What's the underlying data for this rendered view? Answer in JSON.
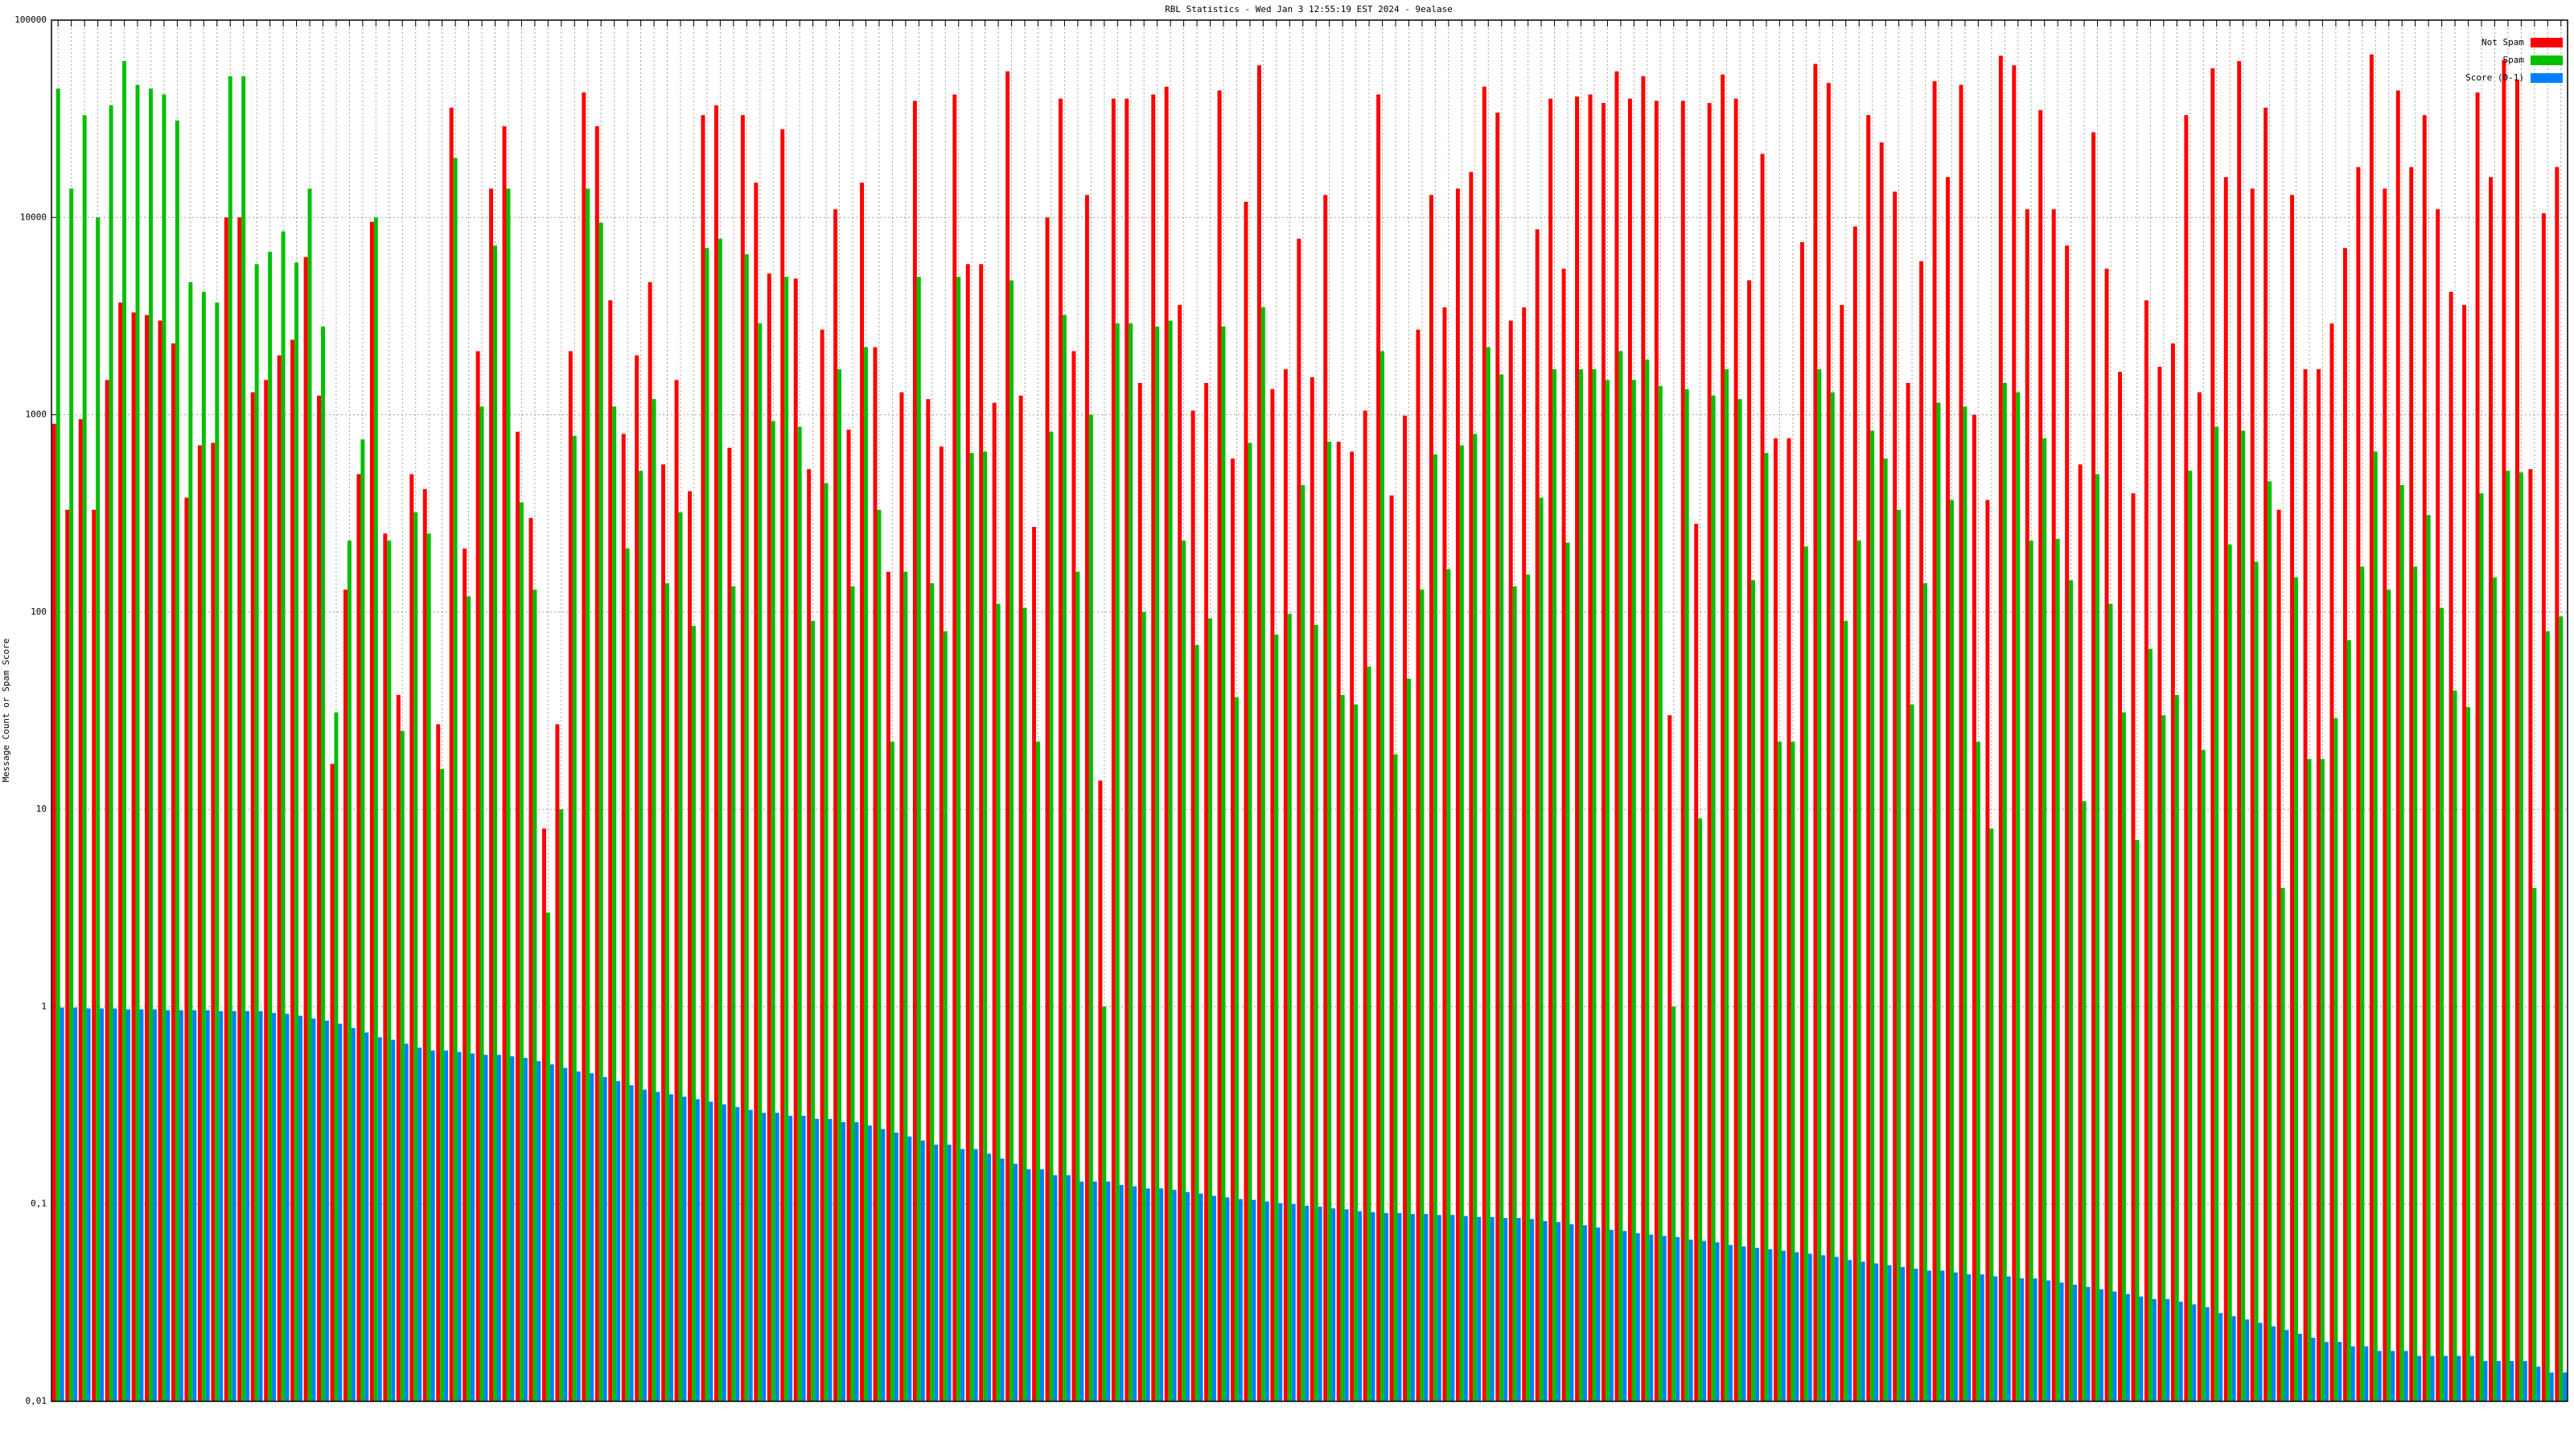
{
  "chart_data": {
    "type": "bar",
    "title": "RBL Statistics - Wed Jan  3 12:55:19 EST 2024 - 9ealase",
    "y_label": "Message Count or Spam Score",
    "log_scale": true,
    "grid": true,
    "legend": "top-right",
    "ylim": [
      0.01,
      100000
    ],
    "yticks": [
      {
        "value": 0.01,
        "label": "0,01"
      },
      {
        "value": 0.1,
        "label": "0,1"
      },
      1,
      10,
      100,
      1000,
      10000,
      100000
    ],
    "categories": [
      null,
      null,
      null,
      null,
      null,
      null,
      null,
      null,
      null,
      null,
      null,
      null,
      null,
      null,
      null,
      null,
      null,
      null,
      null,
      null,
      null,
      null,
      null,
      null,
      null,
      null,
      null,
      null,
      null,
      null,
      null,
      null,
      null,
      null,
      null,
      null,
      null,
      null,
      null,
      null,
      null,
      null,
      null,
      null,
      null,
      null,
      null,
      null,
      null,
      null,
      null,
      null,
      null,
      null,
      null,
      null,
      null,
      null,
      null,
      null,
      null,
      null,
      null,
      null,
      null,
      null,
      null,
      null,
      null,
      null,
      null,
      null,
      null,
      null,
      null,
      null,
      null,
      null,
      null,
      null,
      null,
      null,
      null,
      null,
      null,
      null,
      null,
      null,
      null,
      null,
      null,
      null,
      null,
      null,
      null,
      null,
      null,
      null,
      null,
      null,
      null,
      null,
      null,
      null,
      null,
      null,
      null,
      null,
      null,
      null,
      null,
      null,
      null,
      null,
      null,
      null,
      null,
      null,
      null,
      null,
      null,
      null,
      null,
      null,
      null,
      null,
      null,
      null,
      null,
      null,
      null,
      null,
      null,
      null,
      null,
      null,
      null,
      null,
      null,
      null,
      null,
      null,
      null,
      null,
      null,
      null,
      null,
      null,
      null,
      null,
      null,
      null,
      null,
      null,
      null,
      null,
      null,
      null,
      null,
      null,
      null,
      null,
      null,
      null,
      null,
      null,
      null,
      null,
      null,
      null,
      null,
      null,
      null,
      null,
      null,
      null,
      null,
      null,
      null,
      null,
      null,
      null,
      null,
      null,
      null,
      null,
      null,
      null,
      null,
      null
    ],
    "series": [
      {
        "name": "Not Spam",
        "color": "#ff0000",
        "values": [
          900,
          330,
          950,
          330,
          1500,
          3700,
          3300,
          3200,
          3000,
          2300,
          380,
          700,
          720,
          10000,
          10000,
          1300,
          1500,
          2000,
          2400,
          6300,
          1250,
          17,
          130,
          500,
          9500,
          250,
          38,
          500,
          420,
          27,
          36000,
          210,
          2100,
          14000,
          29000,
          820,
          300,
          8,
          27,
          2100,
          43000,
          29000,
          3800,
          800,
          2000,
          4700,
          560,
          1500,
          410,
          33000,
          37000,
          680,
          33000,
          15000,
          5200,
          28000,
          4900,
          530,
          2700,
          11000,
          840,
          15000,
          2200,
          160,
          1300,
          39000,
          1200,
          690,
          42000,
          5800,
          5800,
          1150,
          55000,
          1250,
          270,
          10000,
          40000,
          2100,
          13000,
          14,
          40000,
          40000,
          1450,
          42000,
          46000,
          3600,
          1050,
          1450,
          44000,
          600,
          12000,
          59000,
          1350,
          1700,
          7800,
          1550,
          13000,
          730,
          650,
          1050,
          42000,
          390,
          990,
          2700,
          13000,
          3500,
          14000,
          17000,
          46000,
          34000,
          3000,
          3500,
          8700,
          40000,
          5500,
          41000,
          42000,
          38000,
          55000,
          40000,
          52000,
          39000,
          30,
          39000,
          280,
          38000,
          53000,
          40000,
          4800,
          21000,
          760,
          760,
          7500,
          60000,
          48000,
          3600,
          9000,
          33000,
          24000,
          13500,
          1450,
          6000,
          49000,
          16000,
          47000,
          1000,
          370,
          66000,
          59000,
          11000,
          35000,
          11000,
          7200,
          560,
          27000,
          5500,
          1650,
          400,
          3800,
          1750,
          2300,
          33000,
          1300,
          57000,
          16000,
          62000,
          14000,
          36000,
          330,
          13000,
          1700,
          1700,
          2900,
          7000,
          18000,
          67000,
          14000,
          44000,
          18000,
          33000,
          11000,
          4200,
          3600,
          43000,
          16000,
          63000,
          50000,
          530,
          10500,
          18000
        ]
      },
      {
        "name": "Spam",
        "color": "#00c000",
        "values": [
          45000,
          14000,
          33000,
          10000,
          37000,
          62000,
          47000,
          45000,
          42000,
          31000,
          4700,
          4200,
          3700,
          52000,
          52000,
          5800,
          6700,
          8500,
          5900,
          14000,
          2800,
          31,
          230,
          750,
          10000,
          230,
          25,
          320,
          250,
          16,
          20000,
          120,
          1100,
          7200,
          14000,
          360,
          130,
          3,
          10,
          780,
          14000,
          9400,
          1100,
          210,
          520,
          1200,
          140,
          320,
          85,
          7000,
          7800,
          135,
          6500,
          2900,
          930,
          5000,
          870,
          90,
          450,
          1700,
          135,
          2200,
          330,
          22,
          160,
          5000,
          140,
          80,
          5000,
          640,
          650,
          110,
          4800,
          105,
          22,
          820,
          3200,
          160,
          1000,
          1,
          2900,
          2900,
          100,
          2800,
          3000,
          230,
          68,
          93,
          2800,
          37,
          720,
          3500,
          77,
          98,
          440,
          86,
          730,
          38,
          34,
          53,
          2100,
          19,
          46,
          130,
          630,
          165,
          700,
          800,
          2200,
          1600,
          135,
          155,
          380,
          1700,
          225,
          1700,
          1700,
          1500,
          2100,
          1500,
          1900,
          1400,
          1,
          1350,
          9,
          1250,
          1700,
          1200,
          145,
          640,
          22,
          22,
          215,
          1700,
          1300,
          90,
          230,
          830,
          600,
          330,
          34,
          140,
          1150,
          370,
          1100,
          22,
          8,
          1450,
          1300,
          230,
          760,
          235,
          145,
          11,
          500,
          110,
          31,
          7,
          65,
          30,
          38,
          520,
          20,
          870,
          220,
          830,
          180,
          460,
          4,
          150,
          18,
          18,
          29,
          72,
          170,
          650,
          130,
          440,
          170,
          310,
          105,
          40,
          33,
          400,
          150,
          520,
          510,
          4,
          80,
          95
        ]
      },
      {
        "name": "Score (0-1)",
        "color": "#0080ff",
        "values": [
          0.99,
          0.99,
          0.98,
          0.98,
          0.98,
          0.97,
          0.97,
          0.97,
          0.96,
          0.96,
          0.96,
          0.96,
          0.95,
          0.95,
          0.95,
          0.95,
          0.93,
          0.92,
          0.9,
          0.87,
          0.85,
          0.82,
          0.78,
          0.74,
          0.7,
          0.68,
          0.65,
          0.62,
          0.6,
          0.6,
          0.59,
          0.58,
          0.57,
          0.57,
          0.56,
          0.55,
          0.53,
          0.51,
          0.49,
          0.47,
          0.46,
          0.44,
          0.42,
          0.4,
          0.38,
          0.37,
          0.36,
          0.35,
          0.34,
          0.33,
          0.32,
          0.31,
          0.3,
          0.29,
          0.29,
          0.28,
          0.28,
          0.27,
          0.27,
          0.26,
          0.26,
          0.25,
          0.24,
          0.23,
          0.22,
          0.21,
          0.2,
          0.2,
          0.19,
          0.19,
          0.18,
          0.17,
          0.16,
          0.15,
          0.15,
          0.14,
          0.14,
          0.13,
          0.13,
          0.13,
          0.125,
          0.123,
          0.12,
          0.12,
          0.118,
          0.115,
          0.113,
          0.11,
          0.108,
          0.106,
          0.105,
          0.103,
          0.101,
          0.1,
          0.098,
          0.097,
          0.095,
          0.094,
          0.092,
          0.091,
          0.09,
          0.09,
          0.089,
          0.089,
          0.088,
          0.088,
          0.087,
          0.086,
          0.086,
          0.085,
          0.085,
          0.084,
          0.082,
          0.081,
          0.079,
          0.078,
          0.076,
          0.074,
          0.073,
          0.071,
          0.07,
          0.069,
          0.068,
          0.066,
          0.065,
          0.064,
          0.062,
          0.061,
          0.06,
          0.059,
          0.058,
          0.057,
          0.056,
          0.055,
          0.054,
          0.052,
          0.051,
          0.05,
          0.049,
          0.048,
          0.047,
          0.046,
          0.046,
          0.045,
          0.044,
          0.044,
          0.043,
          0.043,
          0.042,
          0.042,
          0.041,
          0.04,
          0.039,
          0.038,
          0.037,
          0.036,
          0.035,
          0.034,
          0.033,
          0.033,
          0.032,
          0.031,
          0.03,
          0.028,
          0.027,
          0.026,
          0.025,
          0.024,
          0.023,
          0.022,
          0.021,
          0.02,
          0.02,
          0.019,
          0.019,
          0.018,
          0.018,
          0.018,
          0.017,
          0.017,
          0.017,
          0.017,
          0.017,
          0.016,
          0.016,
          0.016,
          0.016,
          0.015,
          0.014,
          0.014
        ]
      }
    ]
  }
}
